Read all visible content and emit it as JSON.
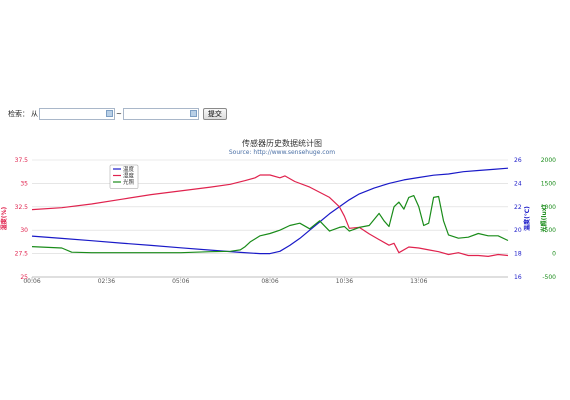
{
  "search": {
    "label": "检索：",
    "from_label": "从",
    "to_label": "~",
    "from_value": "",
    "to_value": "",
    "submit_label": "提交"
  },
  "chart_data": {
    "type": "line",
    "title": "传感器历史数据统计图",
    "subtitle": "Source: http://www.sensehuge.com",
    "x_ticks": [
      "00:06",
      "02:36",
      "05:06",
      "08:06",
      "10:36",
      "13:06"
    ],
    "x_tick_positions": [
      0,
      150,
      300,
      480,
      630,
      780
    ],
    "x_range": [
      0,
      960
    ],
    "grid": true,
    "legend_position": "top-left",
    "axes": [
      {
        "id": "hum",
        "title": "湿度(%)",
        "side": "left",
        "min": 25,
        "max": 37.5,
        "ticks": [
          25,
          27.5,
          30,
          32.5,
          35,
          37.5
        ],
        "color": "#e0234e"
      },
      {
        "id": "temp",
        "title": "温度(℃)",
        "side": "right",
        "min": 16,
        "max": 26,
        "ticks": [
          16,
          18,
          20,
          22,
          24,
          26
        ],
        "color": "#1a1ac8"
      },
      {
        "id": "light",
        "title": "光照(lux)",
        "side": "right",
        "min": -500,
        "max": 2000,
        "ticks": [
          -500,
          0,
          500,
          1000,
          1500,
          2000
        ],
        "color": "#1a8c1a"
      }
    ],
    "series": [
      {
        "name": "温度",
        "axis": "temp",
        "color": "#1a1ac8",
        "x": [
          0,
          60,
          120,
          180,
          240,
          300,
          360,
          420,
          460,
          480,
          500,
          520,
          540,
          560,
          580,
          600,
          620,
          640,
          660,
          690,
          720,
          750,
          780,
          810,
          840,
          870,
          900,
          930,
          960
        ],
        "y": [
          19.5,
          19.3,
          19.1,
          18.9,
          18.7,
          18.5,
          18.3,
          18.1,
          18.0,
          18.0,
          18.2,
          18.7,
          19.3,
          20.0,
          20.7,
          21.4,
          22.0,
          22.6,
          23.1,
          23.6,
          24.0,
          24.3,
          24.5,
          24.7,
          24.8,
          25.0,
          25.1,
          25.2,
          25.3
        ]
      },
      {
        "name": "湿度",
        "axis": "hum",
        "color": "#e0234e",
        "x": [
          0,
          60,
          120,
          180,
          240,
          300,
          360,
          400,
          430,
          450,
          460,
          480,
          500,
          510,
          530,
          560,
          600,
          620,
          630,
          640,
          660,
          680,
          700,
          720,
          730,
          740,
          760,
          780,
          800,
          820,
          840,
          860,
          880,
          900,
          920,
          940,
          960
        ],
        "y": [
          32.2,
          32.4,
          32.8,
          33.3,
          33.8,
          34.2,
          34.6,
          34.9,
          35.3,
          35.6,
          35.9,
          35.9,
          35.6,
          35.8,
          35.2,
          34.6,
          33.5,
          32.5,
          31.5,
          30.2,
          30.3,
          29.6,
          29.0,
          28.4,
          28.6,
          27.6,
          28.2,
          28.1,
          27.9,
          27.7,
          27.4,
          27.6,
          27.3,
          27.3,
          27.2,
          27.4,
          27.3
        ]
      },
      {
        "name": "光照",
        "axis": "light",
        "color": "#1a8c1a",
        "x": [
          0,
          60,
          80,
          120,
          180,
          240,
          300,
          360,
          400,
          420,
          430,
          440,
          460,
          480,
          500,
          520,
          540,
          560,
          580,
          600,
          620,
          630,
          640,
          650,
          660,
          680,
          700,
          710,
          720,
          730,
          740,
          750,
          760,
          770,
          780,
          790,
          800,
          810,
          820,
          830,
          840,
          860,
          880,
          900,
          920,
          940,
          960
        ],
        "y": [
          150,
          120,
          30,
          20,
          20,
          20,
          20,
          40,
          50,
          80,
          150,
          250,
          380,
          430,
          500,
          600,
          650,
          530,
          700,
          480,
          560,
          580,
          480,
          520,
          560,
          600,
          860,
          700,
          580,
          1000,
          1100,
          950,
          1200,
          1240,
          1000,
          600,
          650,
          1200,
          1220,
          700,
          400,
          330,
          350,
          430,
          380,
          380,
          280
        ]
      }
    ]
  }
}
